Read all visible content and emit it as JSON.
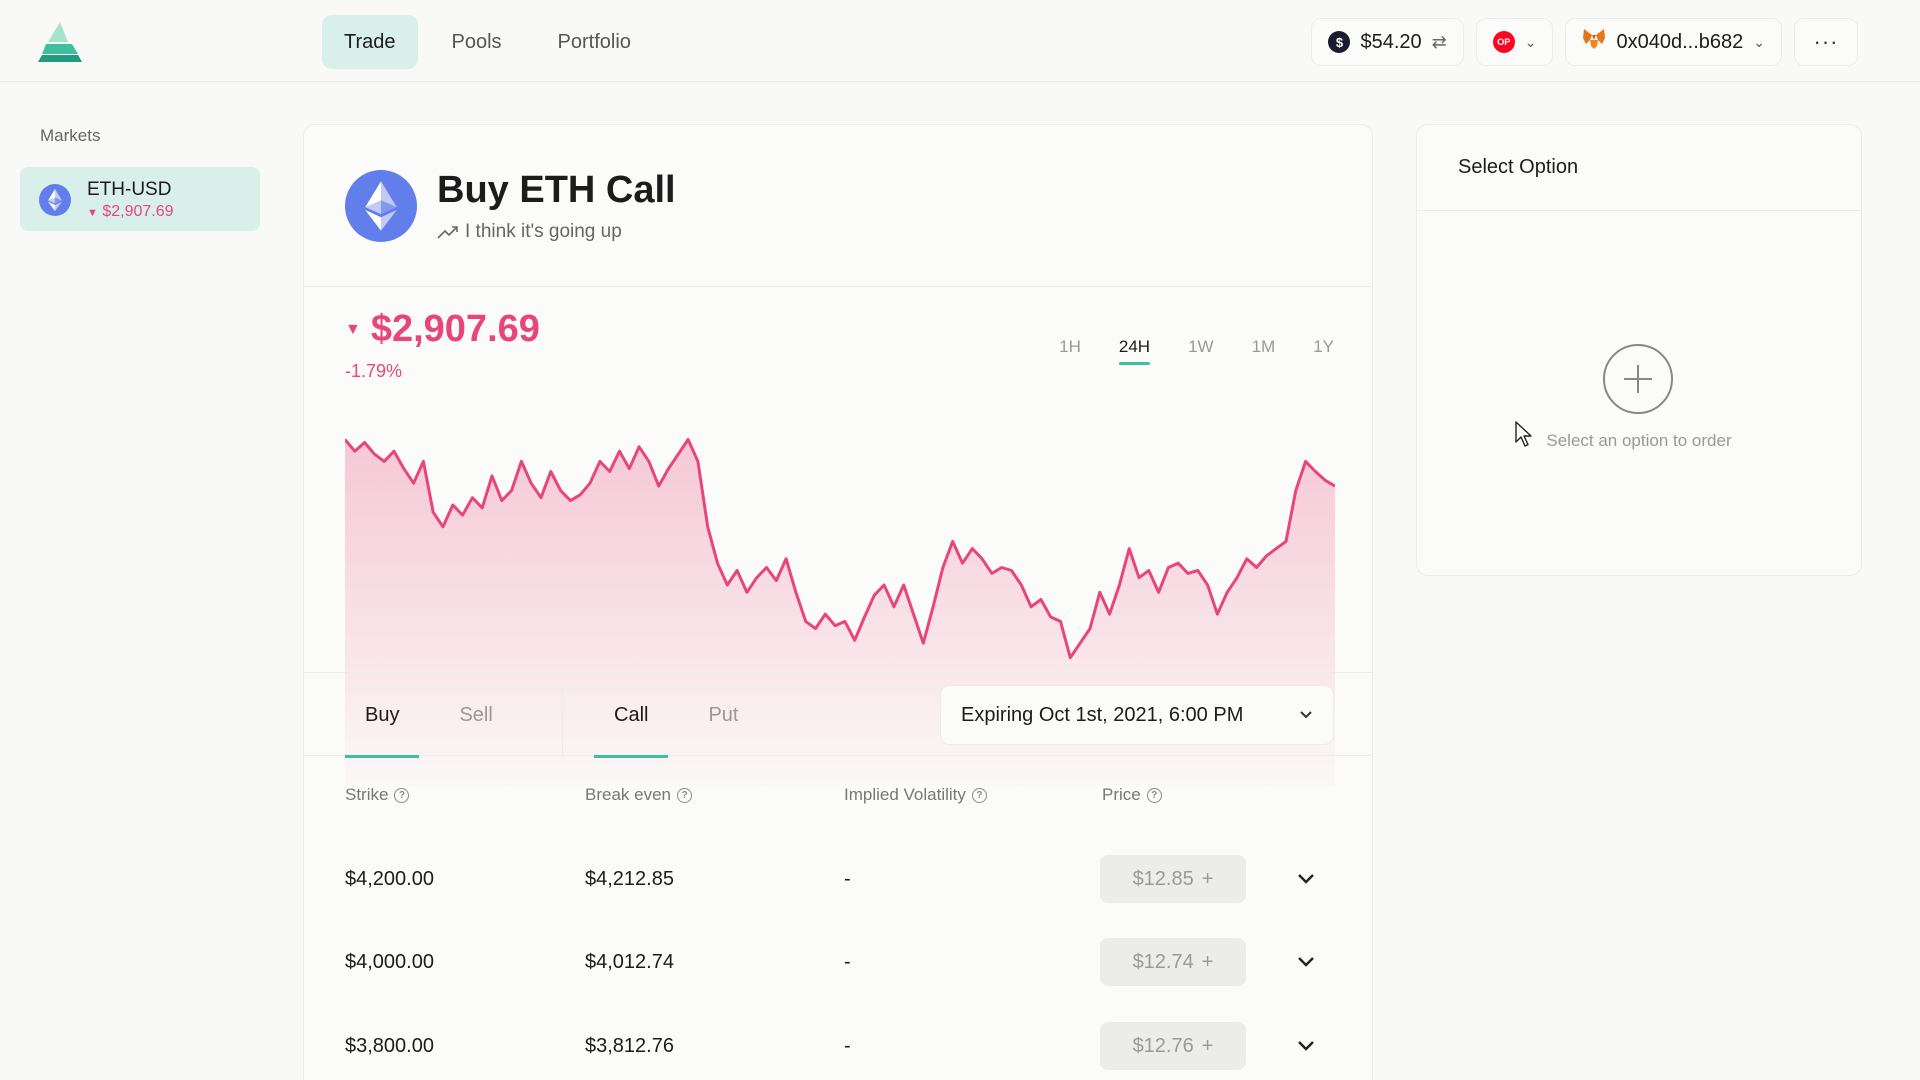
{
  "nav": {
    "items": [
      {
        "label": "Trade",
        "active": true
      },
      {
        "label": "Pools",
        "active": false
      },
      {
        "label": "Portfolio",
        "active": false
      }
    ]
  },
  "account": {
    "balance": "$54.20",
    "network_icon": "optimism-icon",
    "address": "0x040d...b682"
  },
  "sidebar": {
    "label": "Markets",
    "market": {
      "name": "ETH-USD",
      "price": "$2,907.69"
    }
  },
  "main": {
    "title": "Buy ETH Call",
    "subtitle": "I think it's going up",
    "price": "$2,907.69",
    "change": "-1.79%",
    "ranges": [
      "1H",
      "24H",
      "1W",
      "1M",
      "1Y"
    ],
    "active_range": "24H",
    "side_tabs": [
      "Buy",
      "Sell"
    ],
    "type_tabs": [
      "Call",
      "Put"
    ],
    "expiry": "Expiring Oct 1st, 2021, 6:00 PM"
  },
  "table": {
    "headers": [
      "Strike",
      "Break even",
      "Implied Volatility",
      "Price"
    ],
    "rows": [
      {
        "strike": "$4,200.00",
        "break_even": "$4,212.85",
        "iv": "-",
        "price": "$12.85"
      },
      {
        "strike": "$4,000.00",
        "break_even": "$4,012.74",
        "iv": "-",
        "price": "$12.74"
      },
      {
        "strike": "$3,800.00",
        "break_even": "$3,812.76",
        "iv": "-",
        "price": "$12.76"
      }
    ]
  },
  "panel": {
    "title": "Select Option",
    "hint": "Select an option to order"
  },
  "colors": {
    "accent": "#3fbf9f",
    "accent_bg": "#d9efe9",
    "negative": "#e8467a"
  },
  "chart_data": {
    "type": "area",
    "title": "",
    "xlabel": "",
    "ylabel": "",
    "x_range": "24H",
    "series": [
      {
        "values": [
          3000,
          2992,
          2998,
          2990,
          2985,
          2992,
          2980,
          2970,
          2985,
          2950,
          2940,
          2955,
          2948,
          2960,
          2953,
          2975,
          2958,
          2965,
          2985,
          2970,
          2960,
          2978,
          2965,
          2958,
          2962,
          2970,
          2985,
          2978,
          2992,
          2980,
          2995,
          2985,
          2968,
          2980,
          2990,
          3000,
          2985,
          2940,
          2915,
          2900,
          2910,
          2895,
          2905,
          2912,
          2903,
          2918,
          2895,
          2875,
          2870,
          2880,
          2872,
          2875,
          2862,
          2878,
          2893,
          2900,
          2885,
          2900,
          2880,
          2860,
          2885,
          2912,
          2930,
          2915,
          2925,
          2918,
          2908,
          2912,
          2910,
          2900,
          2885,
          2890,
          2878,
          2875,
          2850,
          2860,
          2870,
          2895,
          2880,
          2900,
          2925,
          2905,
          2910,
          2895,
          2912,
          2915,
          2908,
          2910,
          2900,
          2880,
          2895,
          2905,
          2918,
          2912,
          2920,
          2925,
          2930,
          2965,
          2985,
          2978,
          2972,
          2968
        ]
      }
    ],
    "ylim": [
      2845,
      3010
    ]
  }
}
